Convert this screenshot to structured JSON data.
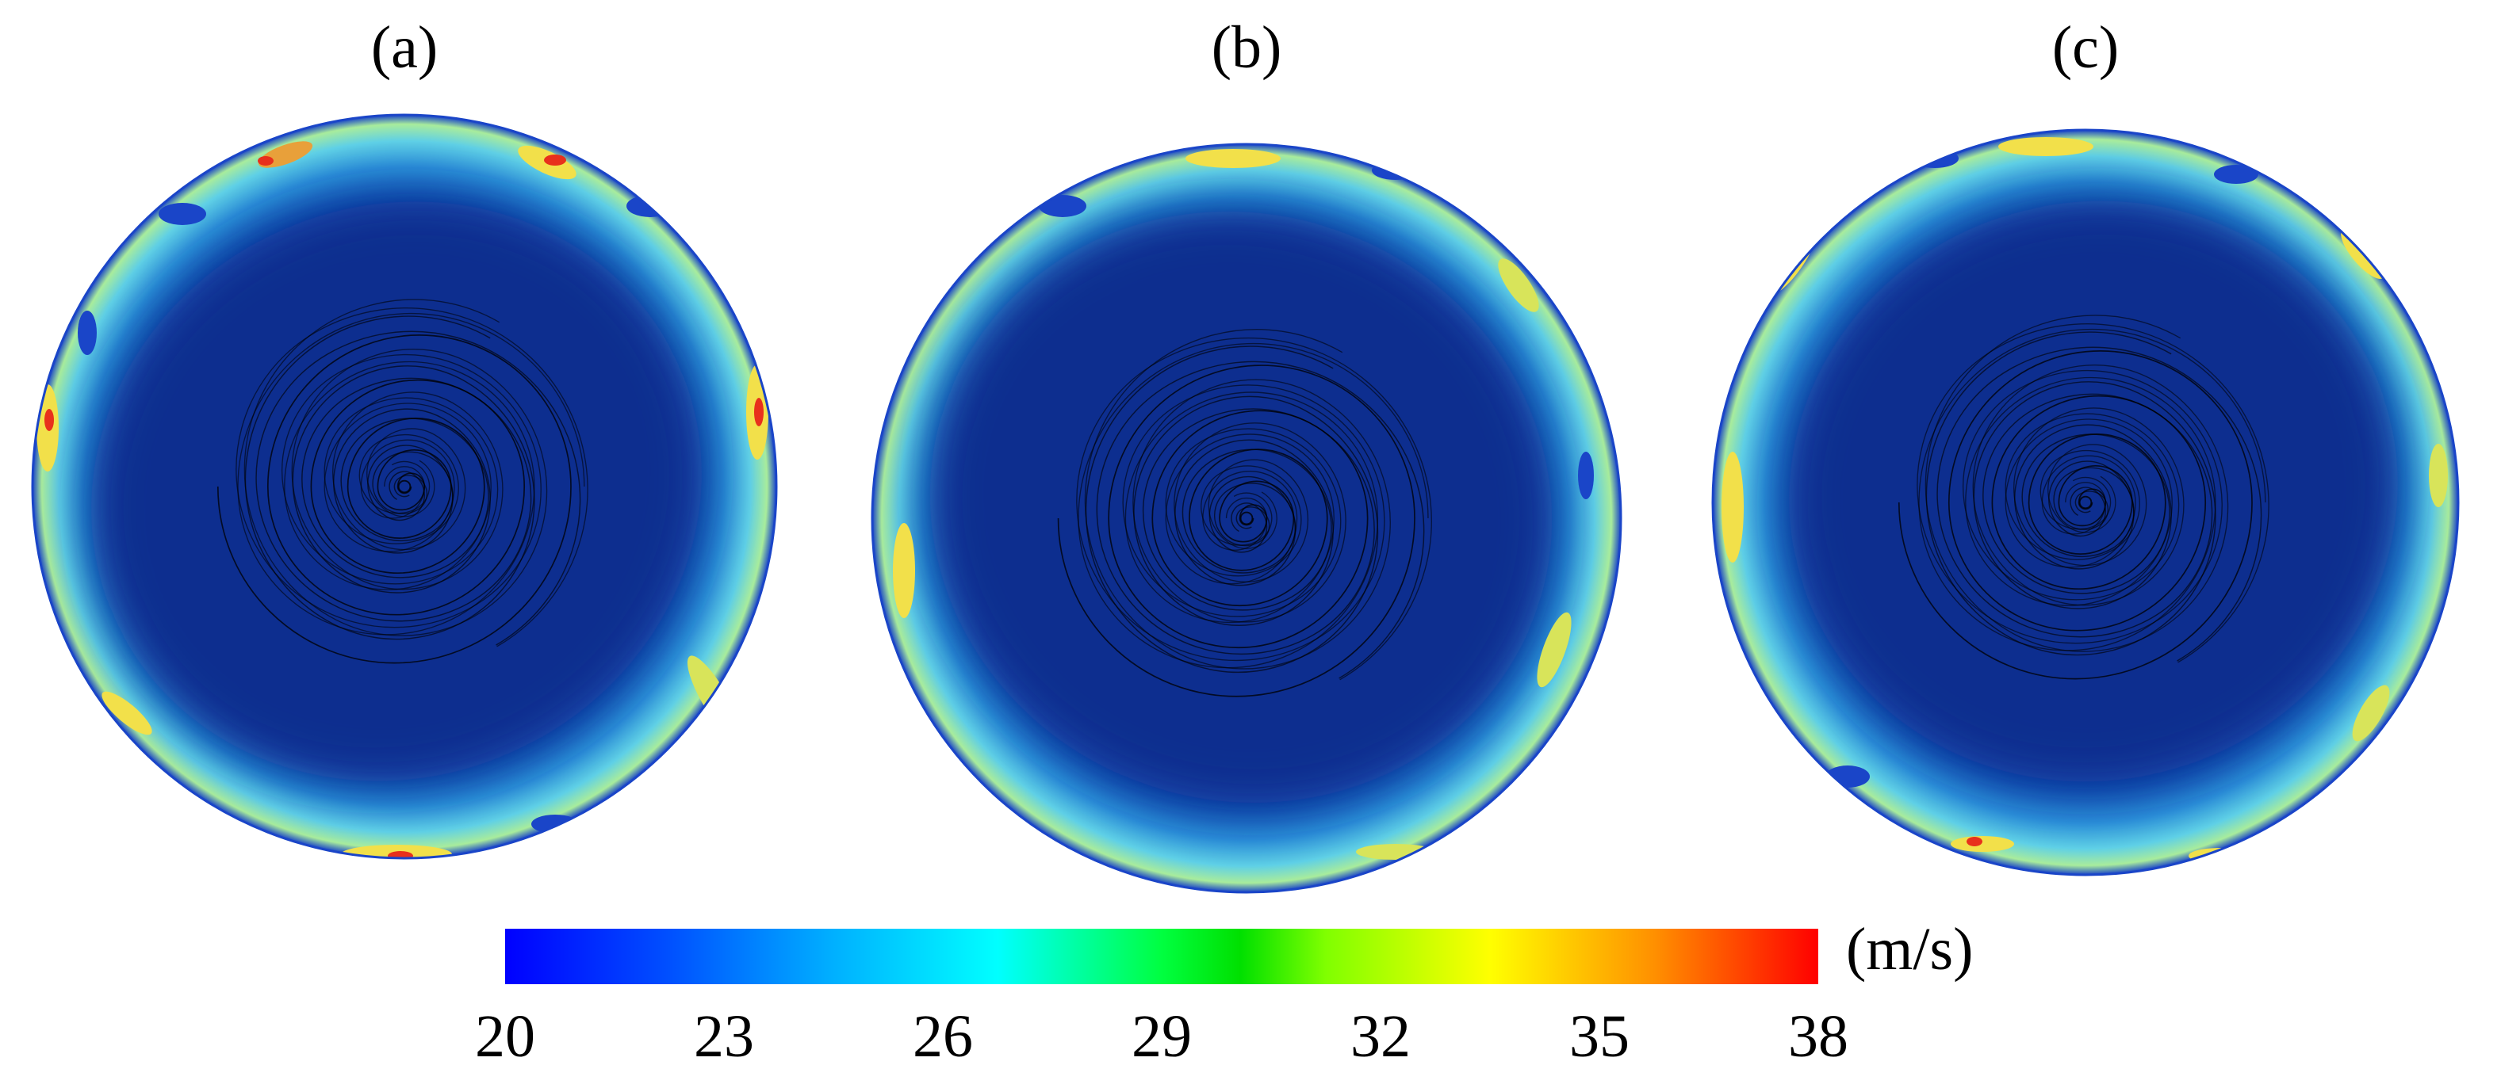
{
  "panels": [
    {
      "label": "(a)"
    },
    {
      "label": "(b)"
    },
    {
      "label": "(c)"
    }
  ],
  "colorbar": {
    "unit": "(m/s)",
    "ticks": [
      "20",
      "23",
      "26",
      "29",
      "32",
      "35",
      "38"
    ],
    "min": 20,
    "max": 38,
    "colormap": "jet"
  },
  "colors": {
    "core": "#0a2f8f",
    "edge_mid": "#2a8fd8",
    "edge_high": "#7fe0d0",
    "hot_yellow": "#f2e04a",
    "hot_red": "#e8301c",
    "streamline": "#000000"
  }
}
